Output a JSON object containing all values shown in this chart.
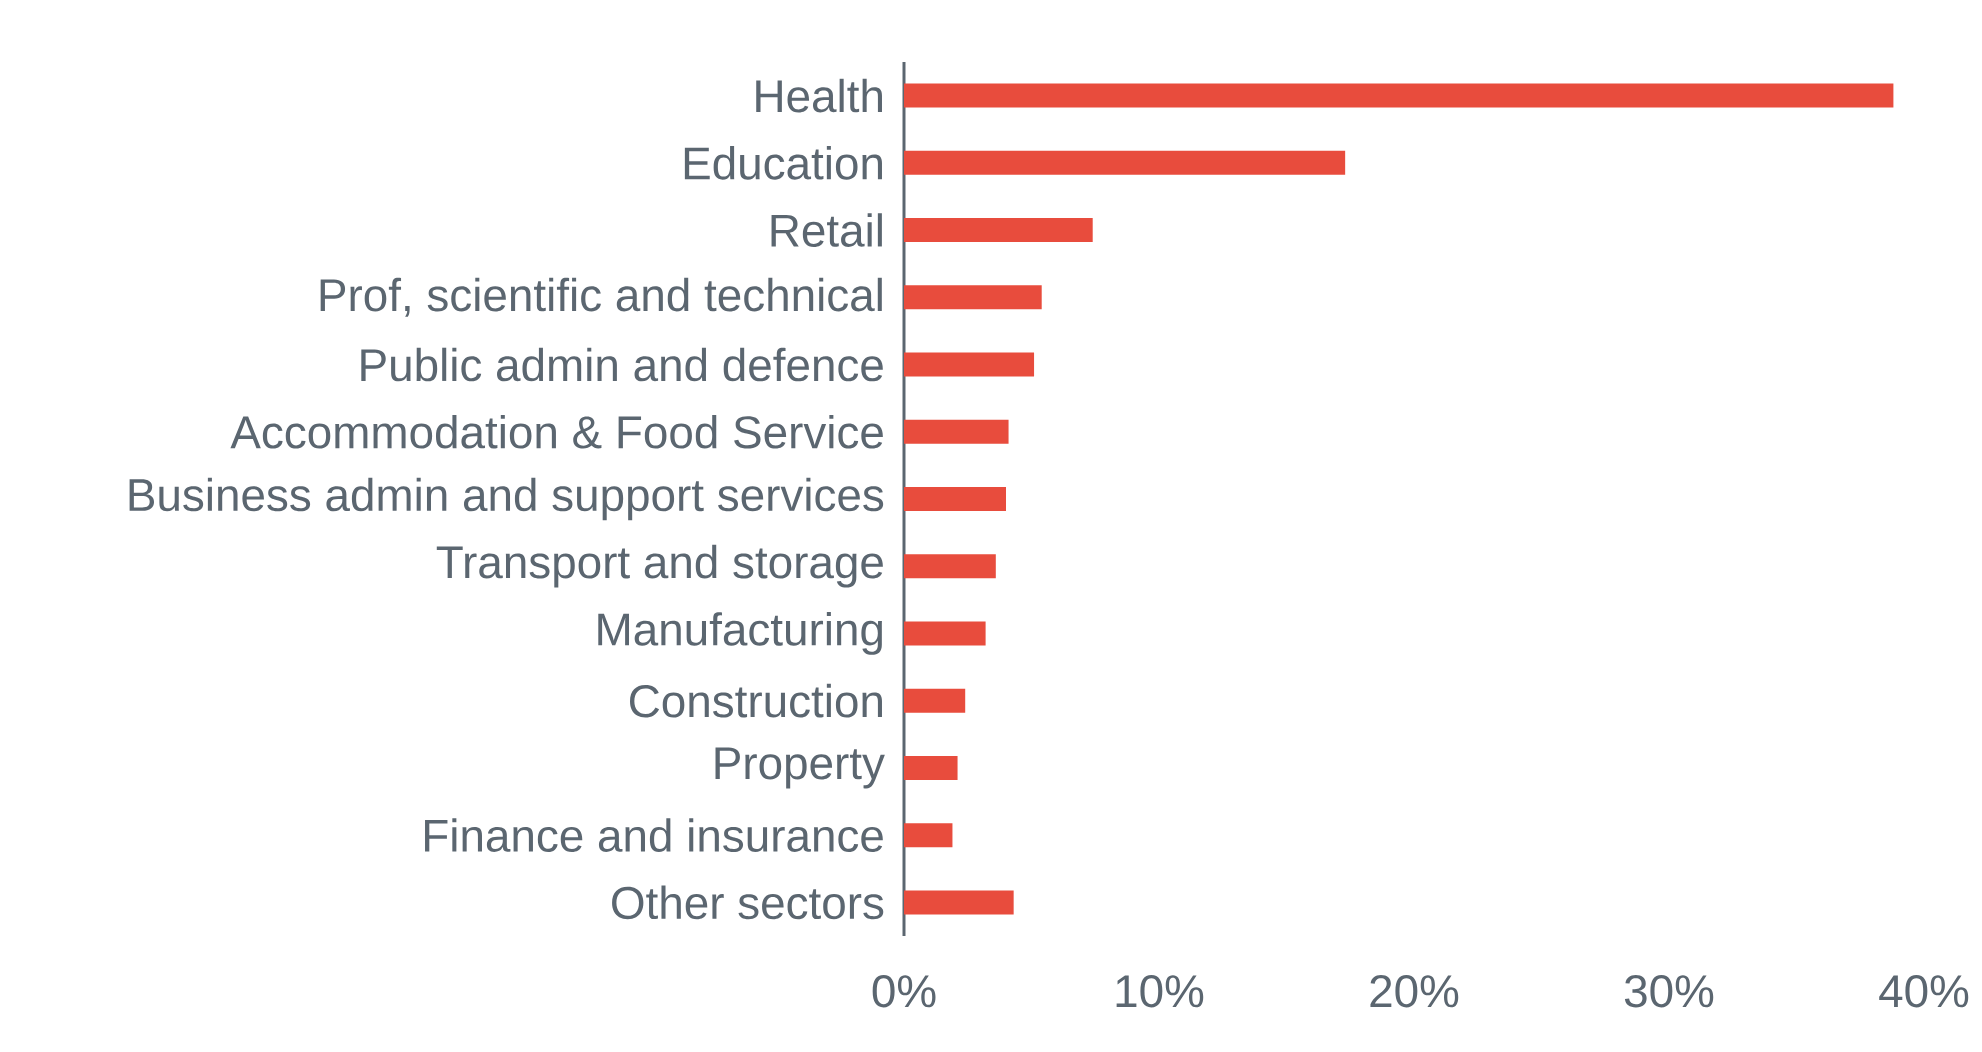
{
  "chart_data": {
    "type": "bar",
    "orientation": "horizontal",
    "categories": [
      "Health",
      "Education",
      "Retail",
      "Prof, scientific and technical",
      "Public admin and defence",
      "Accommodation & Food Service",
      "Business admin and support services",
      "Transport and storage",
      "Manufacturing",
      "Construction",
      "Property",
      "Finance and insurance",
      "Other sectors"
    ],
    "values": [
      38.8,
      17.3,
      7.4,
      5.4,
      5.1,
      4.1,
      4.0,
      3.6,
      3.2,
      2.4,
      2.1,
      1.9,
      4.3
    ],
    "color": "#e84c3d",
    "xlim": [
      0,
      40
    ],
    "xticks": [
      {
        "value": 0,
        "label": "0%"
      },
      {
        "value": 10,
        "label": "10%"
      },
      {
        "value": 20,
        "label": "20%"
      },
      {
        "value": 30,
        "label": "30%"
      },
      {
        "value": 40,
        "label": "40%"
      }
    ],
    "grid": false
  }
}
